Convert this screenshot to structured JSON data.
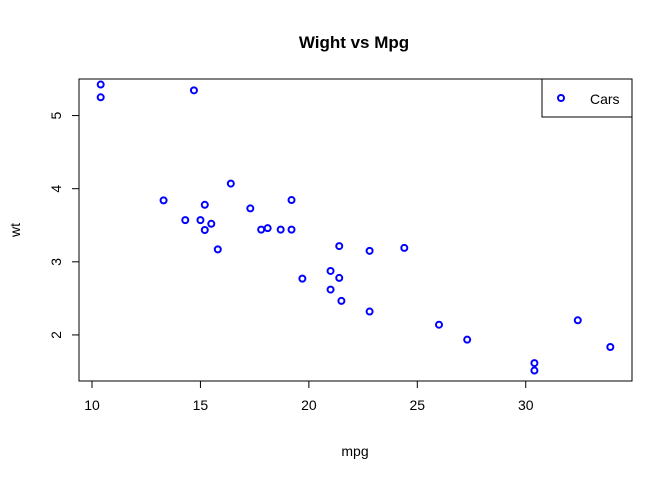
{
  "chart_data": {
    "type": "scatter",
    "title": "Wight vs Mpg",
    "xlabel": "mpg",
    "ylabel": "wt",
    "xlim": [
      9.4,
      34.9
    ],
    "ylim": [
      1.37,
      5.5
    ],
    "xticks": [
      10,
      15,
      20,
      25,
      30
    ],
    "yticks": [
      2,
      3,
      4,
      5
    ],
    "grid": false,
    "legend": {
      "placement": "top-right",
      "entries": [
        "Cars"
      ]
    },
    "marker_color": "#0000ff",
    "series": [
      {
        "name": "Cars",
        "points": [
          [
            21.0,
            2.62
          ],
          [
            21.0,
            2.875
          ],
          [
            22.8,
            2.32
          ],
          [
            21.4,
            3.215
          ],
          [
            18.7,
            3.44
          ],
          [
            18.1,
            3.46
          ],
          [
            14.3,
            3.57
          ],
          [
            24.4,
            3.19
          ],
          [
            22.8,
            3.15
          ],
          [
            19.2,
            3.44
          ],
          [
            17.8,
            3.44
          ],
          [
            16.4,
            4.07
          ],
          [
            17.3,
            3.73
          ],
          [
            15.2,
            3.78
          ],
          [
            10.4,
            5.25
          ],
          [
            10.4,
            5.424
          ],
          [
            14.7,
            5.345
          ],
          [
            32.4,
            2.2
          ],
          [
            30.4,
            1.615
          ],
          [
            33.9,
            1.835
          ],
          [
            21.5,
            2.465
          ],
          [
            15.5,
            3.52
          ],
          [
            15.2,
            3.435
          ],
          [
            13.3,
            3.84
          ],
          [
            19.2,
            3.845
          ],
          [
            27.3,
            1.935
          ],
          [
            26.0,
            2.14
          ],
          [
            30.4,
            1.513
          ],
          [
            15.8,
            3.17
          ],
          [
            19.7,
            2.77
          ],
          [
            15.0,
            3.57
          ],
          [
            21.4,
            2.78
          ]
        ]
      }
    ]
  }
}
